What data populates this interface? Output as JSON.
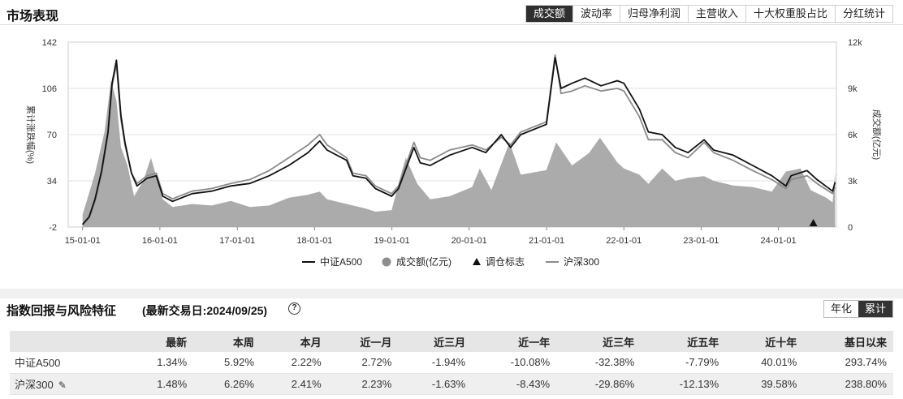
{
  "market": {
    "title": "市场表现",
    "tabs": [
      {
        "label": "成交额",
        "active": true
      },
      {
        "label": "波动率",
        "active": false
      },
      {
        "label": "归母净利润",
        "active": false
      },
      {
        "label": "主营收入",
        "active": false
      },
      {
        "label": "十大权重股占比",
        "active": false
      },
      {
        "label": "分红统计",
        "active": false
      }
    ]
  },
  "chart_data": {
    "type": "line",
    "ylabel": "累计涨跌幅(%)",
    "y2label": "成交额(亿元)",
    "ylim": [
      -2,
      142
    ],
    "y2lim": [
      0,
      12000
    ],
    "y_ticks": [
      "142",
      "106",
      "70",
      "34",
      "-2"
    ],
    "y2_ticks": [
      "12k",
      "9k",
      "6k",
      "3k",
      "0"
    ],
    "x_ticks": [
      "15-01-01",
      "16-01-01",
      "17-01-01",
      "18-01-01",
      "19-01-01",
      "20-01-01",
      "21-01-01",
      "22-01-01",
      "23-01-01",
      "24-01-01"
    ],
    "colors": {
      "a500": "#111111",
      "hs300": "#8a8a8a",
      "volume": "#a6a6a6"
    },
    "series": [
      {
        "name": "中证A500",
        "x": [
          "2015-01-01",
          "2015-02-01",
          "2015-03-01",
          "2015-04-01",
          "2015-05-01",
          "2015-05-20",
          "2015-06-10",
          "2015-07-01",
          "2015-07-20",
          "2015-08-20",
          "2015-09-15",
          "2015-11-01",
          "2015-12-15",
          "2016-01-15",
          "2016-03-01",
          "2016-06-01",
          "2016-09-01",
          "2016-12-01",
          "2017-03-01",
          "2017-06-01",
          "2017-09-01",
          "2017-12-01",
          "2018-01-25",
          "2018-03-01",
          "2018-06-01",
          "2018-07-01",
          "2018-09-01",
          "2018-10-15",
          "2018-12-31",
          "2019-02-01",
          "2019-04-15",
          "2019-05-15",
          "2019-07-01",
          "2019-10-01",
          "2020-01-15",
          "2020-03-20",
          "2020-06-01",
          "2020-07-15",
          "2020-09-01",
          "2020-12-31",
          "2021-02-10",
          "2021-03-10",
          "2021-05-01",
          "2021-07-01",
          "2021-09-15",
          "2021-12-01",
          "2022-01-01",
          "2022-03-15",
          "2022-04-27",
          "2022-07-01",
          "2022-09-01",
          "2022-10-31",
          "2023-01-15",
          "2023-03-01",
          "2023-06-01",
          "2023-09-01",
          "2023-12-01",
          "2024-02-05",
          "2024-03-01",
          "2024-05-15",
          "2024-07-01",
          "2024-09-13",
          "2024-09-25"
        ],
        "values": [
          0,
          6,
          20,
          42,
          72,
          110,
          128,
          85,
          64,
          40,
          30,
          36,
          38,
          22,
          18,
          24,
          26,
          30,
          32,
          38,
          46,
          56,
          65,
          58,
          50,
          38,
          36,
          28,
          22,
          28,
          60,
          48,
          46,
          54,
          60,
          56,
          70,
          60,
          70,
          78,
          130,
          106,
          110,
          114,
          108,
          112,
          110,
          90,
          72,
          70,
          60,
          56,
          66,
          58,
          54,
          46,
          38,
          30,
          38,
          42,
          35,
          26,
          33
        ]
      },
      {
        "name": "沪深300",
        "x": [
          "2015-01-01",
          "2015-02-01",
          "2015-03-01",
          "2015-04-01",
          "2015-05-01",
          "2015-05-20",
          "2015-06-10",
          "2015-07-01",
          "2015-07-20",
          "2015-08-20",
          "2015-09-15",
          "2015-11-01",
          "2015-12-15",
          "2016-01-15",
          "2016-03-01",
          "2016-06-01",
          "2016-09-01",
          "2016-12-01",
          "2017-03-01",
          "2017-06-01",
          "2017-09-01",
          "2017-12-01",
          "2018-01-25",
          "2018-03-01",
          "2018-06-01",
          "2018-07-01",
          "2018-09-01",
          "2018-10-15",
          "2018-12-31",
          "2019-02-01",
          "2019-04-15",
          "2019-05-15",
          "2019-07-01",
          "2019-10-01",
          "2020-01-15",
          "2020-03-20",
          "2020-06-01",
          "2020-07-15",
          "2020-09-01",
          "2020-12-31",
          "2021-02-10",
          "2021-03-10",
          "2021-05-01",
          "2021-07-01",
          "2021-09-15",
          "2021-12-01",
          "2022-01-01",
          "2022-03-15",
          "2022-04-27",
          "2022-07-01",
          "2022-09-01",
          "2022-10-31",
          "2023-01-15",
          "2023-03-01",
          "2023-06-01",
          "2023-09-01",
          "2023-12-01",
          "2024-02-05",
          "2024-03-01",
          "2024-05-15",
          "2024-07-01",
          "2024-09-13",
          "2024-09-25"
        ],
        "values": [
          0,
          5,
          18,
          40,
          70,
          108,
          125,
          82,
          62,
          40,
          32,
          38,
          40,
          24,
          20,
          26,
          28,
          32,
          35,
          42,
          52,
          62,
          70,
          62,
          52,
          40,
          38,
          30,
          24,
          30,
          64,
          52,
          50,
          58,
          62,
          58,
          68,
          62,
          72,
          80,
          132,
          102,
          104,
          108,
          104,
          106,
          104,
          84,
          66,
          66,
          56,
          52,
          64,
          56,
          50,
          42,
          35,
          28,
          35,
          38,
          32,
          24,
          29
        ]
      },
      {
        "name": "成交额(亿元)",
        "x": [
          "2015-01-01",
          "2015-03-01",
          "2015-04-15",
          "2015-05-15",
          "2015-06-10",
          "2015-07-01",
          "2015-08-01",
          "2015-09-01",
          "2015-10-15",
          "2015-11-20",
          "2016-01-15",
          "2016-03-01",
          "2016-06-01",
          "2016-09-01",
          "2016-12-01",
          "2017-03-01",
          "2017-06-01",
          "2017-09-01",
          "2017-12-01",
          "2018-01-25",
          "2018-03-01",
          "2018-06-01",
          "2018-09-01",
          "2018-10-15",
          "2018-12-31",
          "2019-02-15",
          "2019-03-08",
          "2019-05-01",
          "2019-07-01",
          "2019-10-01",
          "2020-01-15",
          "2020-02-20",
          "2020-04-15",
          "2020-07-10",
          "2020-09-01",
          "2020-12-31",
          "2021-02-15",
          "2021-05-01",
          "2021-07-20",
          "2021-09-10",
          "2021-12-01",
          "2022-01-01",
          "2022-03-15",
          "2022-04-27",
          "2022-07-01",
          "2022-09-01",
          "2022-10-31",
          "2023-01-15",
          "2023-03-01",
          "2023-06-01",
          "2023-09-01",
          "2023-12-01",
          "2024-02-05",
          "2024-04-15",
          "2024-06-01",
          "2024-08-15",
          "2024-09-13",
          "2024-09-25"
        ],
        "values": [
          800,
          3500,
          6200,
          9500,
          8200,
          5200,
          4000,
          2000,
          3000,
          4500,
          1800,
          1300,
          1500,
          1400,
          1700,
          1300,
          1400,
          1900,
          2100,
          2300,
          1800,
          1500,
          1200,
          1000,
          1100,
          3500,
          4500,
          2800,
          1800,
          2000,
          2600,
          3800,
          2400,
          5500,
          3400,
          3700,
          5500,
          4000,
          4800,
          5800,
          4200,
          3800,
          3400,
          2800,
          3800,
          3000,
          3200,
          3300,
          3000,
          2700,
          2600,
          2300,
          3600,
          3800,
          2400,
          1900,
          1600,
          3600
        ]
      }
    ],
    "marker_label": "调仓标志",
    "markers": [
      "2024-06-14"
    ]
  },
  "legend": [
    {
      "label": "中证A500",
      "icon": "line-black"
    },
    {
      "label": "成交额(亿元)",
      "icon": "circle-gray"
    },
    {
      "label": "调仓标志",
      "icon": "triangle"
    },
    {
      "label": "沪深300",
      "icon": "line-gray"
    }
  ],
  "returns": {
    "title": "指数回报与风险特征",
    "trade_date": "(最新交易日:2024/09/25)",
    "toggle": [
      {
        "label": "年化",
        "active": false
      },
      {
        "label": "累计",
        "active": true
      }
    ],
    "columns": [
      "",
      "最新",
      "本周",
      "本月",
      "近一月",
      "近三月",
      "近一年",
      "近三年",
      "近五年",
      "近十年",
      "基日以来"
    ],
    "rows": [
      {
        "name": "中证A500",
        "values": [
          "1.34%",
          "5.92%",
          "2.22%",
          "2.72%",
          "-1.94%",
          "-10.08%",
          "-32.38%",
          "-7.79%",
          "40.01%",
          "293.74%"
        ]
      },
      {
        "name": "沪深300",
        "values": [
          "1.48%",
          "6.26%",
          "2.41%",
          "2.23%",
          "-1.63%",
          "-8.43%",
          "-29.86%",
          "-12.13%",
          "39.58%",
          "238.80%"
        ]
      }
    ]
  }
}
